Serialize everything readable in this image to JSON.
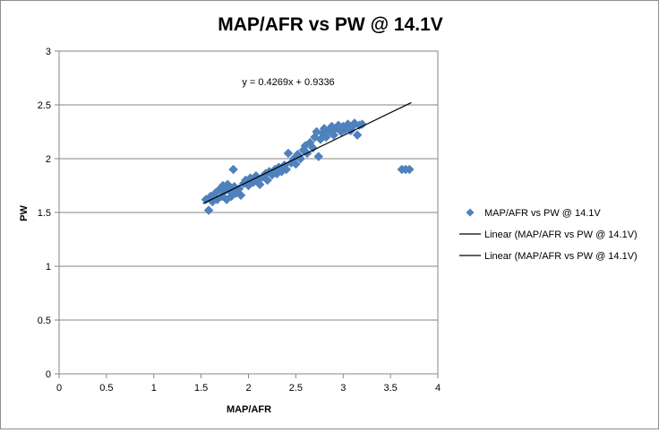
{
  "chart_data": {
    "type": "scatter",
    "title": "MAP/AFR vs PW @ 14.1V",
    "xlabel": "MAP/AFR",
    "ylabel": "PW",
    "xlim": [
      0,
      4
    ],
    "ylim": [
      0,
      3
    ],
    "x_ticks": [
      0,
      0.5,
      1,
      1.5,
      2,
      2.5,
      3,
      3.5,
      4
    ],
    "x_tick_labels": [
      "0",
      "0.5",
      "1",
      "1.5",
      "2",
      "2.5",
      "3",
      "3.5",
      "4"
    ],
    "y_ticks": [
      0,
      0.5,
      1,
      1.5,
      2,
      2.5,
      3
    ],
    "y_tick_labels": [
      "0",
      "0.5",
      "1",
      "1.5",
      "2",
      "2.5",
      "3"
    ],
    "grid": "horizontal",
    "legend_position": "right",
    "equation": "y = 0.4269x + 0.9336",
    "colors": {
      "series": "#4f81bd",
      "trendline": "#000000",
      "grid": "#868686"
    },
    "series": [
      {
        "name": "MAP/AFR vs PW @ 14.1V",
        "marker": "diamond",
        "points": [
          [
            1.55,
            1.62
          ],
          [
            1.58,
            1.52
          ],
          [
            1.6,
            1.65
          ],
          [
            1.62,
            1.6
          ],
          [
            1.65,
            1.68
          ],
          [
            1.67,
            1.62
          ],
          [
            1.7,
            1.72
          ],
          [
            1.72,
            1.65
          ],
          [
            1.73,
            1.75
          ],
          [
            1.75,
            1.7
          ],
          [
            1.77,
            1.62
          ],
          [
            1.78,
            1.76
          ],
          [
            1.8,
            1.7
          ],
          [
            1.82,
            1.65
          ],
          [
            1.84,
            1.9
          ],
          [
            1.85,
            1.74
          ],
          [
            1.87,
            1.68
          ],
          [
            1.9,
            1.72
          ],
          [
            1.92,
            1.66
          ],
          [
            1.95,
            1.77
          ],
          [
            1.97,
            1.8
          ],
          [
            2.0,
            1.75
          ],
          [
            2.02,
            1.82
          ],
          [
            2.05,
            1.78
          ],
          [
            2.08,
            1.84
          ],
          [
            2.1,
            1.8
          ],
          [
            2.12,
            1.76
          ],
          [
            2.15,
            1.83
          ],
          [
            2.18,
            1.86
          ],
          [
            2.2,
            1.8
          ],
          [
            2.22,
            1.88
          ],
          [
            2.25,
            1.85
          ],
          [
            2.28,
            1.9
          ],
          [
            2.3,
            1.86
          ],
          [
            2.32,
            1.92
          ],
          [
            2.35,
            1.88
          ],
          [
            2.38,
            1.94
          ],
          [
            2.4,
            1.9
          ],
          [
            2.42,
            2.05
          ],
          [
            2.45,
            1.96
          ],
          [
            2.48,
            2.0
          ],
          [
            2.5,
            1.95
          ],
          [
            2.52,
            2.04
          ],
          [
            2.55,
            2.0
          ],
          [
            2.58,
            2.08
          ],
          [
            2.6,
            2.12
          ],
          [
            2.62,
            2.05
          ],
          [
            2.65,
            2.15
          ],
          [
            2.68,
            2.1
          ],
          [
            2.7,
            2.2
          ],
          [
            2.72,
            2.25
          ],
          [
            2.74,
            2.02
          ],
          [
            2.76,
            2.18
          ],
          [
            2.78,
            2.24
          ],
          [
            2.8,
            2.28
          ],
          [
            2.82,
            2.2
          ],
          [
            2.85,
            2.26
          ],
          [
            2.88,
            2.3
          ],
          [
            2.9,
            2.22
          ],
          [
            2.92,
            2.28
          ],
          [
            2.95,
            2.31
          ],
          [
            2.98,
            2.25
          ],
          [
            3.0,
            2.3
          ],
          [
            3.02,
            2.27
          ],
          [
            3.05,
            2.32
          ],
          [
            3.08,
            2.26
          ],
          [
            3.1,
            2.3
          ],
          [
            3.12,
            2.33
          ],
          [
            3.15,
            2.22
          ],
          [
            3.17,
            2.31
          ],
          [
            3.2,
            2.32
          ],
          [
            3.62,
            1.9
          ],
          [
            3.66,
            1.9
          ],
          [
            3.7,
            1.9
          ]
        ]
      }
    ],
    "trendline": {
      "slope": 0.4269,
      "intercept": 0.9336,
      "x_range": [
        1.52,
        3.72
      ]
    },
    "legend": [
      {
        "label": "MAP/AFR vs PW @ 14.1V",
        "symbol": "diamond"
      },
      {
        "label": "Linear (MAP/AFR vs PW @ 14.1V)",
        "symbol": "line"
      },
      {
        "label": "Linear (MAP/AFR vs PW @ 14.1V)",
        "symbol": "line"
      }
    ]
  }
}
